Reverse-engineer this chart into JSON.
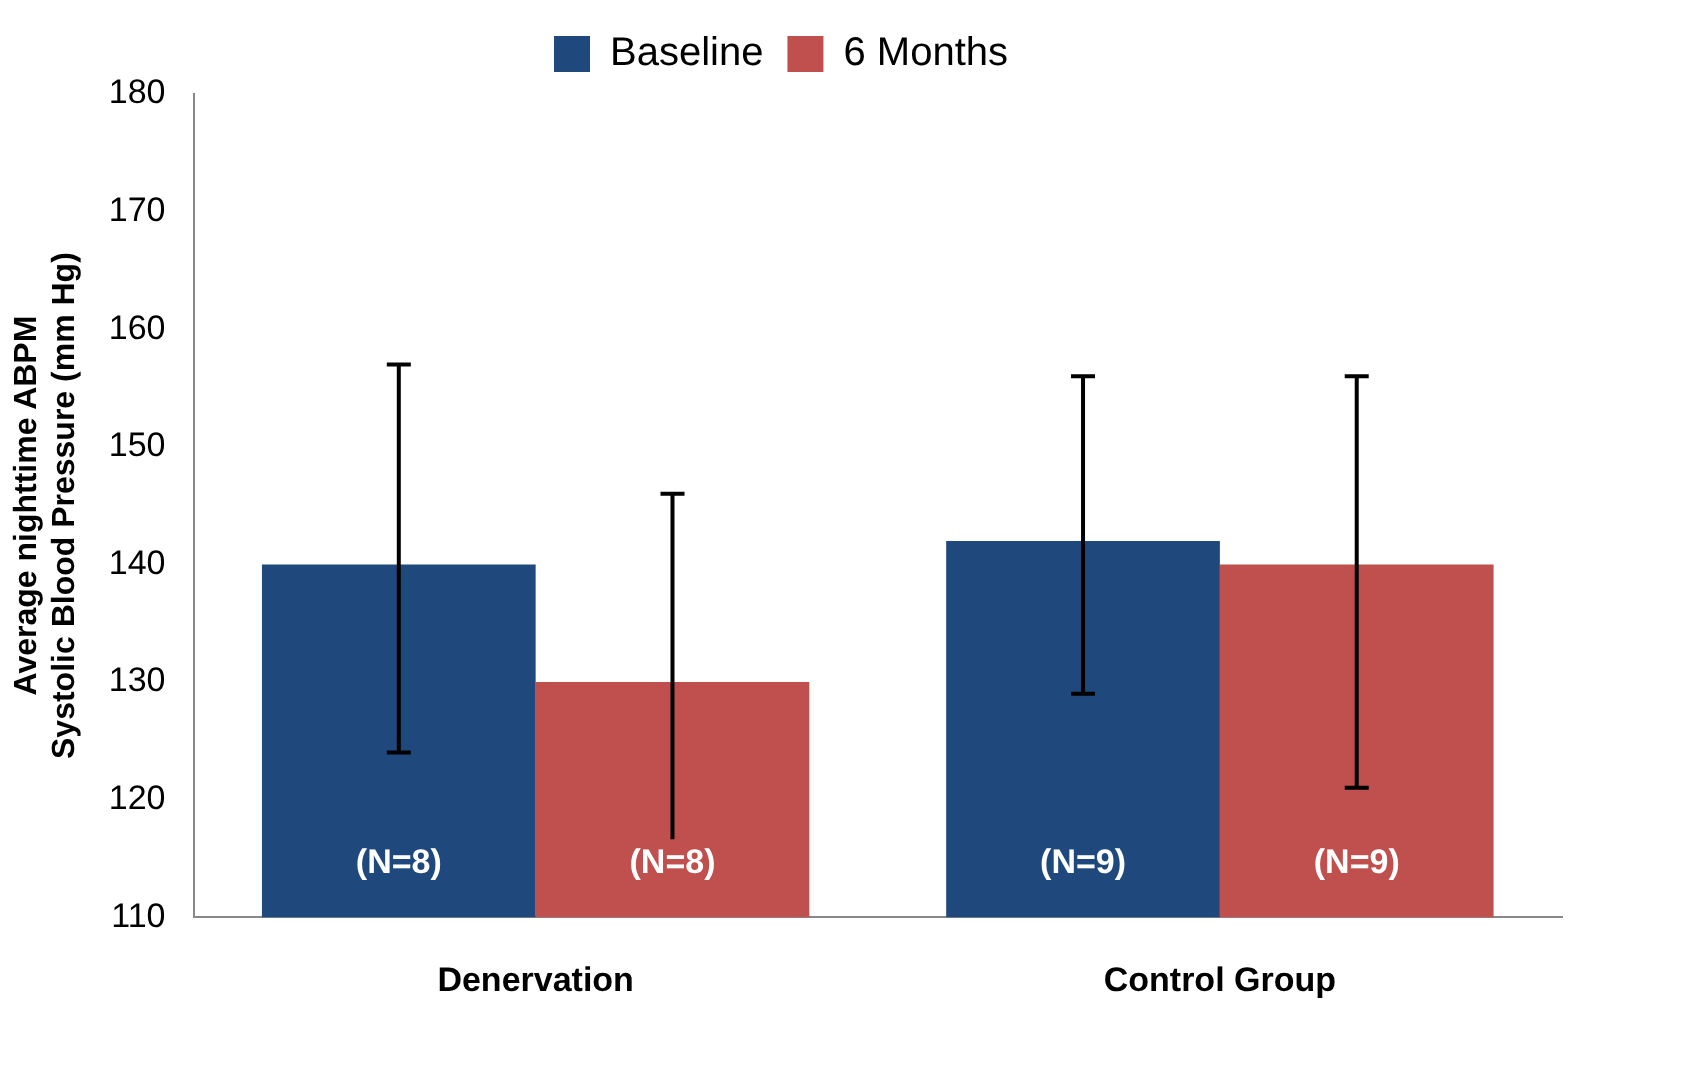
{
  "chart_data": {
    "type": "bar",
    "ylabel": "Average nighttime ABPM\nSystolic Blood Pressure (mm Hg)",
    "categories": [
      "Denervation",
      "Control Group"
    ],
    "series": [
      {
        "name": "Baseline",
        "color": "#1f497d",
        "values": [
          140,
          142
        ],
        "errors": [
          [
            124,
            157
          ],
          [
            129,
            156
          ]
        ]
      },
      {
        "name": "6 Months",
        "color": "#c0504d",
        "values": [
          130,
          140
        ],
        "errors": [
          [
            114,
            146
          ],
          [
            121,
            156
          ]
        ]
      }
    ],
    "annotations": [
      "(N=8)",
      "(N=8)",
      "(N=9)",
      "(N=9)"
    ],
    "ylim": [
      110,
      180
    ],
    "yticks": [
      110,
      120,
      130,
      140,
      150,
      160,
      170,
      180
    ],
    "grid": false,
    "legend": "top"
  }
}
